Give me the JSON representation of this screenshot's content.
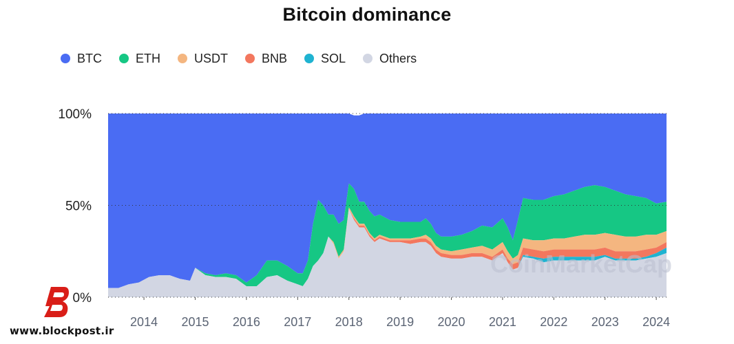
{
  "colors": {
    "BTC": "#4a6cf3",
    "ETH": "#16c784",
    "USDT": "#f4b680",
    "BNB": "#f3775e",
    "SOL": "#1fb3d1",
    "Others": "#d2d6e3",
    "axis_text": "#222222",
    "tick_text": "#5b6474",
    "logo_red": "#d91e18"
  },
  "watermark": "CoinMarketCap",
  "site": {
    "url": "www.blockpost.ir"
  },
  "chart_data": {
    "type": "area",
    "stacked": true,
    "percent": true,
    "title": "Bitcoin dominance",
    "legend": [
      "BTC",
      "ETH",
      "USDT",
      "BNB",
      "SOL",
      "Others"
    ],
    "legend_position": "top-left",
    "y_ticks": [
      "100%",
      "50%",
      "0%"
    ],
    "ylim": [
      0,
      100
    ],
    "x_ticks": [
      "2014",
      "2015",
      "2016",
      "2017",
      "2018",
      "2019",
      "2020",
      "2021",
      "2022",
      "2023",
      "2024"
    ],
    "x": [
      2013.3,
      2013.5,
      2013.7,
      2013.9,
      2014.1,
      2014.3,
      2014.5,
      2014.7,
      2014.9,
      2015.0,
      2015.2,
      2015.4,
      2015.6,
      2015.8,
      2016.0,
      2016.2,
      2016.4,
      2016.6,
      2016.8,
      2017.0,
      2017.1,
      2017.2,
      2017.3,
      2017.4,
      2017.5,
      2017.6,
      2017.7,
      2017.8,
      2017.9,
      2018.0,
      2018.1,
      2018.2,
      2018.3,
      2018.4,
      2018.5,
      2018.6,
      2018.8,
      2019.0,
      2019.2,
      2019.4,
      2019.5,
      2019.6,
      2019.7,
      2019.8,
      2020.0,
      2020.2,
      2020.4,
      2020.6,
      2020.8,
      2021.0,
      2021.1,
      2021.2,
      2021.3,
      2021.4,
      2021.6,
      2021.8,
      2022.0,
      2022.2,
      2022.4,
      2022.6,
      2022.8,
      2023.0,
      2023.2,
      2023.4,
      2023.6,
      2023.8,
      2024.0,
      2024.2
    ],
    "series": [
      {
        "name": "BTC",
        "values": [
          95,
          95,
          93,
          92,
          89,
          88,
          88,
          90,
          91,
          84,
          87,
          88,
          87,
          88,
          92,
          88,
          80,
          80,
          83,
          87,
          87,
          80,
          60,
          47,
          50,
          55,
          55,
          60,
          58,
          38,
          40,
          47,
          48,
          53,
          56,
          55,
          58,
          59,
          59,
          59,
          57,
          60,
          65,
          67,
          67,
          66,
          64,
          61,
          62,
          57,
          62,
          69,
          58,
          46,
          47,
          47,
          45,
          44,
          42,
          40,
          39,
          40,
          42,
          44,
          45,
          46,
          49,
          48
        ]
      },
      {
        "name": "ETH",
        "values": [
          0,
          0,
          0,
          0,
          0,
          0,
          0,
          0,
          0,
          0,
          1,
          1,
          2,
          2,
          2,
          6,
          9,
          8,
          8,
          6,
          7,
          10,
          23,
          33,
          26,
          12,
          15,
          18,
          16,
          13,
          15,
          12,
          12,
          12,
          12,
          11,
          10,
          9,
          9,
          8,
          9,
          8,
          7,
          7,
          8,
          8,
          9,
          11,
          12,
          13,
          13,
          10,
          19,
          22,
          22,
          22,
          23,
          24,
          25,
          26,
          27,
          25,
          24,
          23,
          22,
          20,
          17,
          16
        ]
      },
      {
        "name": "USDT",
        "values": [
          0,
          0,
          0,
          0,
          0,
          0,
          0,
          0,
          0,
          0,
          0,
          0,
          0,
          0,
          0,
          0,
          0,
          0,
          0,
          0,
          0,
          0,
          0,
          0,
          0,
          0,
          1,
          1,
          1,
          1,
          1,
          1,
          1,
          1,
          1,
          1,
          1,
          1,
          1,
          1,
          2,
          2,
          2,
          2,
          2,
          3,
          3,
          4,
          4,
          4,
          4,
          3,
          4,
          5,
          5,
          6,
          6,
          6,
          7,
          8,
          8,
          8,
          9,
          8,
          8,
          8,
          7,
          6
        ]
      },
      {
        "name": "BNB",
        "values": [
          0,
          0,
          0,
          0,
          0,
          0,
          0,
          0,
          0,
          0,
          0,
          0,
          0,
          0,
          0,
          0,
          0,
          0,
          0,
          0,
          0,
          0,
          0,
          0,
          0,
          0,
          0,
          0,
          0,
          0,
          1,
          1,
          1,
          1,
          1,
          1,
          1,
          1,
          2,
          2,
          2,
          2,
          2,
          2,
          2,
          2,
          2,
          2,
          2,
          2,
          2,
          3,
          3,
          4,
          4,
          4,
          4,
          4,
          4,
          4,
          4,
          4,
          4,
          4,
          4,
          4,
          3,
          3
        ]
      },
      {
        "name": "SOL",
        "values": [
          0,
          0,
          0,
          0,
          0,
          0,
          0,
          0,
          0,
          0,
          0,
          0,
          0,
          0,
          0,
          0,
          0,
          0,
          0,
          0,
          0,
          0,
          0,
          0,
          0,
          0,
          0,
          0,
          0,
          0,
          0,
          0,
          0,
          0,
          0,
          0,
          0,
          0,
          0,
          0,
          0,
          0,
          0,
          0,
          0,
          0,
          0,
          0,
          0,
          0,
          0,
          0,
          0,
          1,
          1,
          2,
          2,
          2,
          2,
          2,
          2,
          1,
          1,
          1,
          1,
          1,
          2,
          3
        ]
      },
      {
        "name": "Others",
        "values": [
          5,
          5,
          7,
          8,
          11,
          12,
          12,
          10,
          9,
          16,
          12,
          11,
          11,
          10,
          6,
          6,
          11,
          12,
          9,
          7,
          6,
          10,
          17,
          20,
          24,
          33,
          29,
          21,
          25,
          48,
          42,
          38,
          38,
          33,
          30,
          32,
          30,
          30,
          29,
          30,
          30,
          28,
          24,
          22,
          21,
          21,
          22,
          22,
          20,
          24,
          19,
          15,
          16,
          22,
          21,
          19,
          20,
          20,
          20,
          20,
          20,
          22,
          20,
          20,
          20,
          21,
          22,
          24
        ]
      }
    ]
  }
}
